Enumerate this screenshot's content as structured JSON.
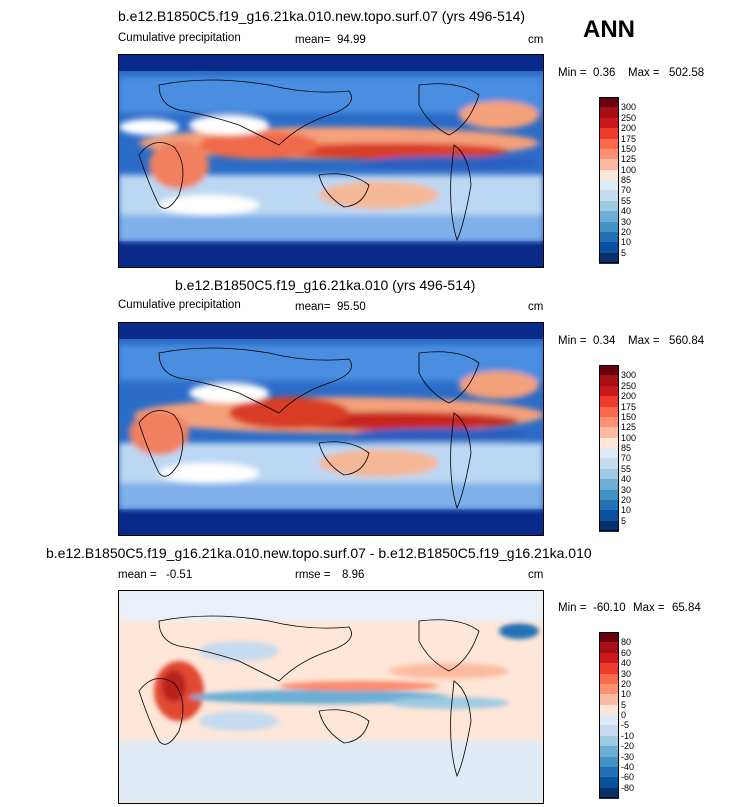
{
  "header": {
    "season": "ANN"
  },
  "panels": [
    {
      "title": "b.e12.B1850C5.f19_g16.21ka.010.new.topo.surf.07 (yrs 496-514)",
      "variable": "Cumulative precipitation",
      "mean_label": "mean=",
      "mean_value": "94.99",
      "units": "cm",
      "min_label": "Min =",
      "min_value": "0.36",
      "max_label": "Max =",
      "max_value": "502.58",
      "colorbar": [
        "300",
        "250",
        "200",
        "175",
        "150",
        "125",
        "100",
        "85",
        "70",
        "55",
        "40",
        "30",
        "20",
        "10",
        "5"
      ],
      "colors": [
        "#67000d",
        "#a50f15",
        "#cb181d",
        "#ef3b2c",
        "#fb6a4a",
        "#fc9272",
        "#fcbba1",
        "#fee6d8",
        "#deebf7",
        "#c6dbef",
        "#9ecae1",
        "#6baed6",
        "#4292c6",
        "#2171b5",
        "#08519c",
        "#08306b"
      ]
    },
    {
      "title": "b.e12.B1850C5.f19_g16.21ka.010 (yrs 496-514)",
      "variable": "Cumulative precipitation",
      "mean_label": "mean=",
      "mean_value": "95.50",
      "units": "cm",
      "min_label": "Min =",
      "min_value": "0.34",
      "max_label": "Max =",
      "max_value": "560.84",
      "colorbar": [
        "300",
        "250",
        "200",
        "175",
        "150",
        "125",
        "100",
        "85",
        "70",
        "55",
        "40",
        "30",
        "20",
        "10",
        "5"
      ],
      "colors": [
        "#67000d",
        "#a50f15",
        "#cb181d",
        "#ef3b2c",
        "#fb6a4a",
        "#fc9272",
        "#fcbba1",
        "#fee6d8",
        "#deebf7",
        "#c6dbef",
        "#9ecae1",
        "#6baed6",
        "#4292c6",
        "#2171b5",
        "#08519c",
        "#08306b"
      ]
    },
    {
      "title": "b.e12.B1850C5.f19_g16.21ka.010.new.topo.surf.07 - b.e12.B1850C5.f19_g16.21ka.010",
      "mean_label": "mean =",
      "mean_value": "-0.51",
      "rmse_label": "rmse =",
      "rmse_value": "8.96",
      "units": "cm",
      "min_label": "Min =",
      "min_value": "-60.10",
      "max_label": "Max =",
      "max_value": "65.84",
      "colorbar": [
        "80",
        "60",
        "40",
        "30",
        "20",
        "10",
        "5",
        "0",
        "-5",
        "-10",
        "-20",
        "-30",
        "-40",
        "-60",
        "-80"
      ],
      "colors": [
        "#67000d",
        "#a50f15",
        "#cb181d",
        "#ef3b2c",
        "#fb6a4a",
        "#fc9272",
        "#fcbba1",
        "#fee6d8",
        "#deebf7",
        "#c6dbef",
        "#9ecae1",
        "#6baed6",
        "#4292c6",
        "#2171b5",
        "#08519c",
        "#08306b"
      ]
    }
  ],
  "chart_data": [
    {
      "type": "heatmap",
      "title": "b.e12.B1850C5.f19_g16.21ka.010.new.topo.surf.07 (yrs 496-514)",
      "subtitle": "Cumulative precipitation",
      "units": "cm",
      "mean": 94.99,
      "min": 0.36,
      "max": 502.58,
      "contour_levels": [
        5,
        10,
        20,
        30,
        40,
        55,
        70,
        85,
        100,
        125,
        150,
        175,
        200,
        250,
        300
      ]
    },
    {
      "type": "heatmap",
      "title": "b.e12.B1850C5.f19_g16.21ka.010 (yrs 496-514)",
      "subtitle": "Cumulative precipitation",
      "units": "cm",
      "mean": 95.5,
      "min": 0.34,
      "max": 560.84,
      "contour_levels": [
        5,
        10,
        20,
        30,
        40,
        55,
        70,
        85,
        100,
        125,
        150,
        175,
        200,
        250,
        300
      ]
    },
    {
      "type": "heatmap",
      "title": "b.e12.B1850C5.f19_g16.21ka.010.new.topo.surf.07 - b.e12.B1850C5.f19_g16.21ka.010",
      "units": "cm",
      "mean": -0.51,
      "rmse": 8.96,
      "min": -60.1,
      "max": 65.84,
      "contour_levels": [
        -80,
        -60,
        -40,
        -30,
        -20,
        -10,
        -5,
        0,
        5,
        10,
        20,
        30,
        40,
        60,
        80
      ]
    }
  ]
}
